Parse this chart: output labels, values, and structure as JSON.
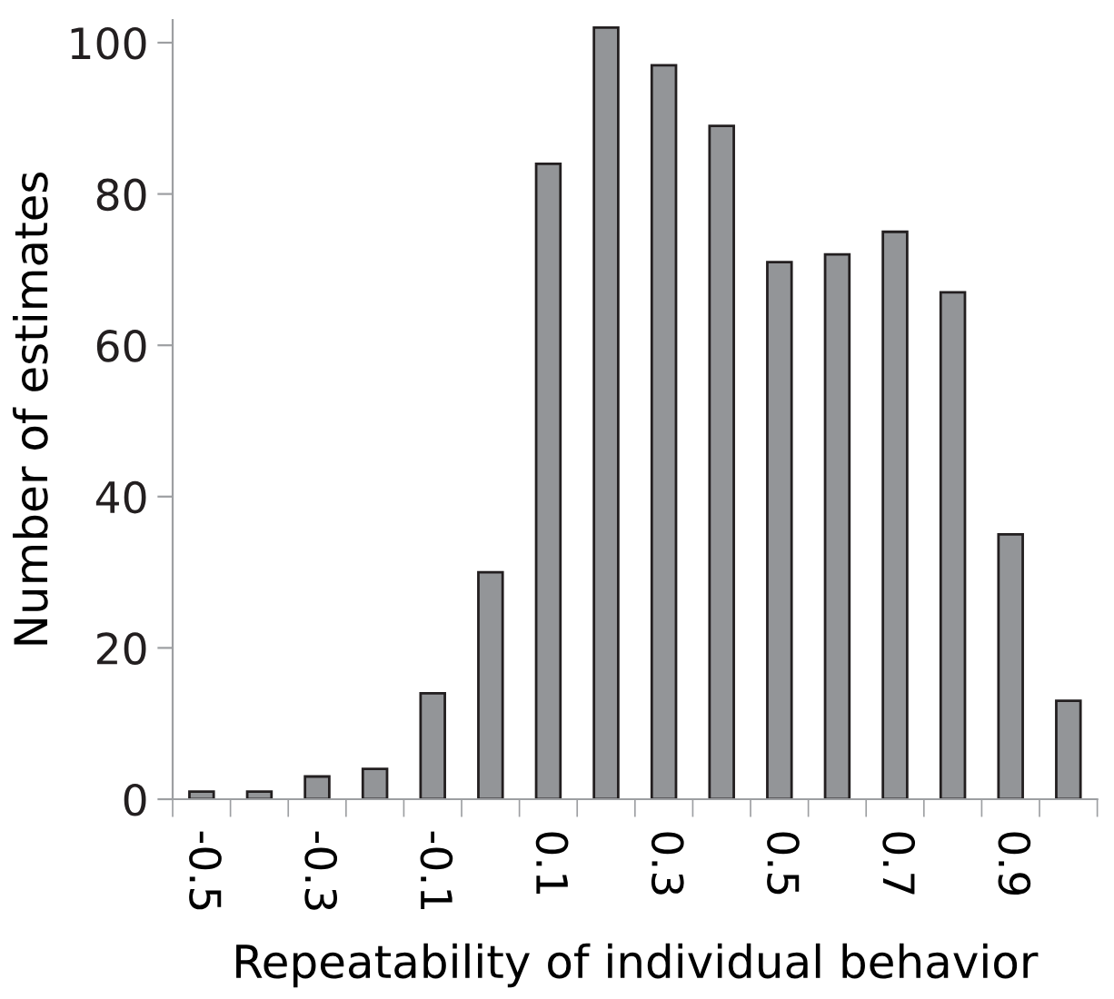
{
  "chart_data": {
    "type": "bar",
    "xlabel": "Repeatability of individual behavior",
    "ylabel": "Number of estimates",
    "categories": [
      "-0.5",
      null,
      "-0.3",
      null,
      "-0.1",
      null,
      "0.1",
      null,
      "0.3",
      null,
      "0.5",
      null,
      "0.7",
      null,
      "0.9",
      null
    ],
    "values": [
      1,
      1,
      3,
      4,
      14,
      30,
      84,
      102,
      97,
      89,
      71,
      72,
      75,
      67,
      35,
      13
    ],
    "color": "#939598",
    "ylim": [
      0,
      103
    ],
    "yticks": [
      0,
      20,
      40,
      60,
      80,
      100
    ],
    "grid": false
  }
}
